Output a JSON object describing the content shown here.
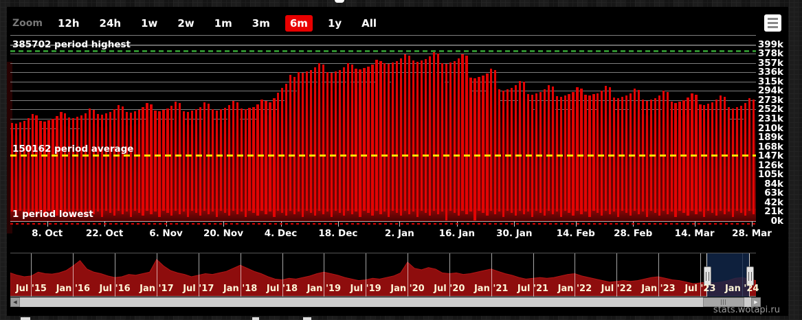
{
  "page": {
    "credit": "stats.wotapi.ru"
  },
  "toolbar": {
    "zoom_label": "Zoom",
    "buttons": [
      {
        "label": "12h",
        "active": false
      },
      {
        "label": "24h",
        "active": false
      },
      {
        "label": "1w",
        "active": false
      },
      {
        "label": "2w",
        "active": false
      },
      {
        "label": "1m",
        "active": false
      },
      {
        "label": "3m",
        "active": false
      },
      {
        "label": "6m",
        "active": true
      },
      {
        "label": "1y",
        "active": false
      },
      {
        "label": "All",
        "active": false
      }
    ],
    "export_icon": "hamburger-menu-icon",
    "active_color": "#e80000"
  },
  "chart_data": {
    "type": "column",
    "title": "",
    "ylabel": "",
    "unit": "k",
    "y_axis": {
      "min_k": 0,
      "max_k": 420,
      "tick_k": 21,
      "labels": [
        "399k",
        "378k",
        "357k",
        "336k",
        "315k",
        "294k",
        "273k",
        "252k",
        "231k",
        "210k",
        "189k",
        "168k",
        "147k",
        "126k",
        "105k",
        "84k",
        "63k",
        "42k",
        "21k",
        "0k"
      ]
    },
    "x_ticks": [
      {
        "label": "8. Oct",
        "day": 9
      },
      {
        "label": "22. Oct",
        "day": 23
      },
      {
        "label": "6. Nov",
        "day": 38
      },
      {
        "label": "20. Nov",
        "day": 52
      },
      {
        "label": "4. Dec",
        "day": 66
      },
      {
        "label": "18. Dec",
        "day": 80
      },
      {
        "label": "2. Jan",
        "day": 95
      },
      {
        "label": "16. Jan",
        "day": 109
      },
      {
        "label": "30. Jan",
        "day": 123
      },
      {
        "label": "14. Feb",
        "day": 138
      },
      {
        "label": "28. Feb",
        "day": 152
      },
      {
        "label": "14. Mar",
        "day": 167
      },
      {
        "label": "28. Mar",
        "day": 181
      }
    ],
    "plotlines": {
      "highest": {
        "value": 385702,
        "label": "385702 period highest",
        "color": "#2f8f2f",
        "style": "dashed"
      },
      "average": {
        "value": 150162,
        "label": "150162 period average",
        "color": "#ffe200",
        "style": "dashed"
      },
      "lowest": {
        "value": 1,
        "label": "1 period lowest",
        "color": "#e00000",
        "style": "dashed"
      }
    },
    "days": {
      "count": 182,
      "peaks_k": [
        222,
        220,
        223,
        226,
        232,
        242,
        239,
        227,
        225,
        228,
        231,
        237,
        247,
        244,
        234,
        232,
        235,
        238,
        244,
        254,
        251,
        242,
        240,
        243,
        246,
        252,
        262,
        259,
        247,
        245,
        248,
        251,
        257,
        267,
        264,
        250,
        248,
        251,
        254,
        260,
        270,
        267,
        248,
        246,
        249,
        252,
        258,
        268,
        265,
        252,
        250,
        253,
        256,
        262,
        272,
        269,
        254,
        252,
        255,
        258,
        264,
        274,
        271,
        268,
        278,
        290,
        300,
        310,
        330,
        325,
        337,
        335,
        338,
        341,
        347,
        357,
        354,
        337,
        335,
        338,
        341,
        347,
        357,
        354,
        344,
        342,
        345,
        348,
        354,
        364,
        361,
        357,
        355,
        358,
        361,
        367,
        377,
        374,
        362,
        360,
        363,
        366,
        372,
        384,
        379,
        357,
        355,
        358,
        361,
        367,
        377,
        374,
        324,
        322,
        325,
        328,
        334,
        344,
        341,
        297,
        295,
        298,
        301,
        307,
        317,
        314,
        287,
        285,
        288,
        291,
        297,
        307,
        304,
        282,
        280,
        283,
        286,
        292,
        302,
        299,
        285,
        283,
        286,
        289,
        295,
        305,
        302,
        279,
        277,
        280,
        283,
        289,
        299,
        296,
        274,
        272,
        275,
        278,
        284,
        294,
        291,
        269,
        267,
        270,
        273,
        279,
        289,
        286,
        264,
        262,
        265,
        268,
        274,
        284,
        281,
        257,
        255,
        258,
        261,
        267,
        277,
        274
      ],
      "mins_k": [
        21,
        9,
        24,
        19,
        12,
        23,
        16,
        21,
        9,
        24,
        19,
        12,
        23,
        16,
        21,
        9,
        24,
        19,
        12,
        23,
        16,
        21,
        9,
        24,
        19,
        12,
        23,
        16,
        21,
        9,
        24,
        19,
        12,
        23,
        16,
        21,
        9,
        24,
        19,
        12,
        23,
        16,
        21,
        9,
        24,
        19,
        12,
        23,
        16,
        21,
        9,
        24,
        19,
        12,
        23,
        16,
        21,
        9,
        24,
        19,
        12,
        23,
        16,
        21,
        9,
        24,
        19,
        12,
        23,
        16,
        21,
        9,
        24,
        19,
        12,
        23,
        16,
        21,
        9,
        24,
        19,
        12,
        23,
        16,
        21,
        9,
        24,
        19,
        12,
        23,
        16,
        21,
        9,
        24,
        19,
        12,
        23,
        16,
        21,
        9,
        24,
        19,
        12,
        23,
        16,
        21,
        1,
        24,
        19,
        12,
        23,
        16,
        21,
        2,
        24,
        19,
        12,
        23,
        16,
        21,
        9,
        24,
        19,
        12,
        23,
        16,
        21,
        9,
        24,
        19,
        12,
        23,
        16,
        21,
        9,
        24,
        19,
        12,
        23,
        16,
        21,
        9,
        24,
        19,
        12,
        23,
        16,
        21,
        9,
        24,
        19,
        12,
        23,
        16,
        21,
        9,
        24,
        19,
        12,
        23,
        16,
        21,
        9,
        24,
        19,
        12,
        23,
        16,
        21,
        9,
        24,
        19,
        12,
        23,
        16,
        21,
        9,
        24,
        19,
        12,
        23,
        16
      ],
      "low_band_top_k": 27
    },
    "navigator": {
      "values": [
        60,
        54,
        50,
        52,
        62,
        58,
        57,
        60,
        66,
        78,
        92,
        70,
        62,
        58,
        52,
        48,
        50,
        56,
        54,
        58,
        62,
        95,
        78,
        66,
        60,
        56,
        50,
        54,
        58,
        56,
        60,
        64,
        72,
        80,
        72,
        64,
        58,
        50,
        44,
        42,
        46,
        44,
        48,
        52,
        58,
        62,
        58,
        54,
        48,
        44,
        40,
        42,
        46,
        44,
        48,
        52,
        60,
        88,
        72,
        68,
        74,
        70,
        60,
        58,
        60,
        56,
        58,
        62,
        66,
        70,
        64,
        58,
        54,
        48,
        44,
        46,
        48,
        46,
        48,
        52,
        56,
        58,
        52,
        48,
        44,
        40,
        36,
        38,
        40,
        38,
        40,
        44,
        48,
        50,
        46,
        42,
        40,
        36,
        32,
        34,
        36,
        34,
        36,
        40,
        46,
        48,
        44,
        40
      ],
      "ticks": [
        {
          "label": "Jul '15",
          "month": 3
        },
        {
          "label": "Jan '16",
          "month": 9
        },
        {
          "label": "Jul '16",
          "month": 15
        },
        {
          "label": "Jan '17",
          "month": 21
        },
        {
          "label": "Jul '17",
          "month": 27
        },
        {
          "label": "Jan '18",
          "month": 33
        },
        {
          "label": "Jul '18",
          "month": 39
        },
        {
          "label": "Jan '19",
          "month": 45
        },
        {
          "label": "Jul '19",
          "month": 51
        },
        {
          "label": "Jan '20",
          "month": 57
        },
        {
          "label": "Jul '20",
          "month": 63
        },
        {
          "label": "Jan '21",
          "month": 69
        },
        {
          "label": "Jul '21",
          "month": 75
        },
        {
          "label": "Jan '22",
          "month": 81
        },
        {
          "label": "Jul '22",
          "month": 87
        },
        {
          "label": "Jan '23",
          "month": 93
        },
        {
          "label": "Jul '23",
          "month": 99
        },
        {
          "label": "Jan '24",
          "month": 105
        }
      ],
      "selection": {
        "start_frac": 0.9337,
        "end_frac": 0.9908
      },
      "area_color": "#8e0d0d",
      "selection_color": "#12284c"
    },
    "colors": {
      "bar": "#e20404",
      "bar_gap": "#6b0202",
      "gridline": "#7e7e7e",
      "background": "#000000"
    }
  }
}
